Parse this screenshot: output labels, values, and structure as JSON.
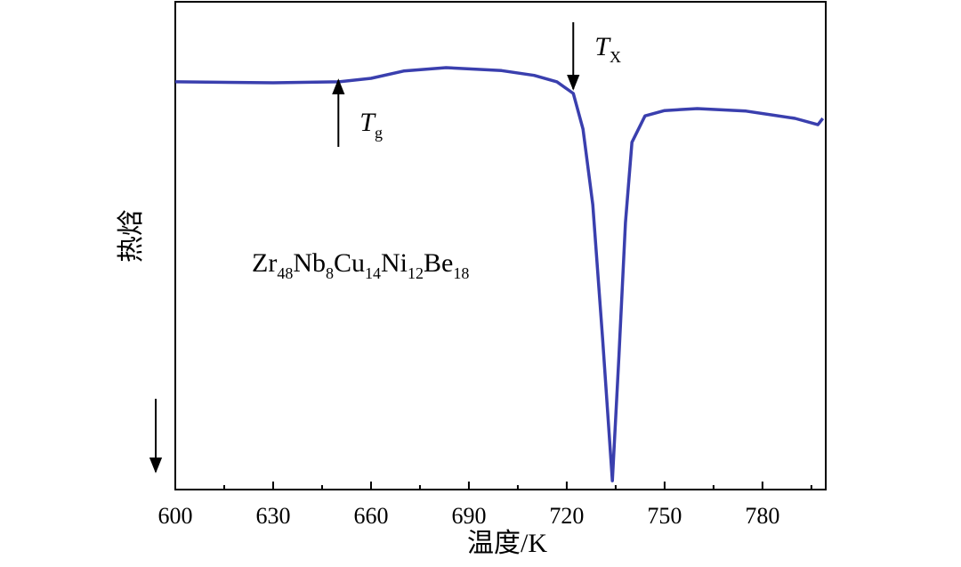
{
  "chart_data": {
    "type": "line",
    "x_label": "温度/K",
    "y_label": "热焓",
    "xlim": [
      600,
      799.4
    ],
    "ylim": [
      0,
      100
    ],
    "xticks": [
      600,
      630,
      660,
      690,
      720,
      750,
      780
    ],
    "xminorticks": [
      615,
      645,
      675,
      705,
      735,
      765,
      795
    ],
    "series": [
      {
        "color": "#3a3fae",
        "x": [
          600,
          630,
          650,
          660,
          670,
          683,
          700,
          710,
          717,
          722,
          725,
          728,
          731,
          734,
          736,
          738,
          740,
          744,
          750,
          760,
          775,
          790,
          797,
          798.5
        ],
        "values": [
          83.6,
          83.4,
          83.6,
          84.3,
          85.8,
          86.5,
          85.9,
          84.9,
          83.6,
          81.2,
          73.9,
          58.4,
          31.0,
          1.8,
          27.4,
          54.7,
          71.2,
          76.6,
          77.7,
          78.1,
          77.6,
          76.1,
          74.8,
          76.1
        ]
      }
    ],
    "annotations": [
      {
        "x": 650,
        "label": "T",
        "sub": "g",
        "direction": "up"
      },
      {
        "x": 722,
        "label": "T",
        "sub": "X",
        "direction": "down"
      }
    ],
    "formula": [
      {
        "el": "Zr",
        "n": "48"
      },
      {
        "el": "Nb",
        "n": "8"
      },
      {
        "el": "Cu",
        "n": "14"
      },
      {
        "el": "Ni",
        "n": "12"
      },
      {
        "el": "Be",
        "n": "18"
      }
    ]
  }
}
